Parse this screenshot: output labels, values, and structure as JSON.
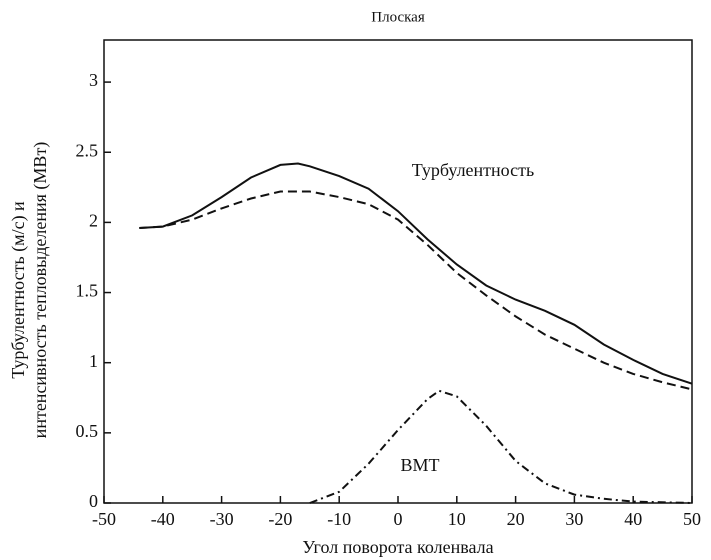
{
  "chart_data": {
    "type": "line",
    "title": "Плоская",
    "xlabel": "Угол поворота коленвала",
    "ylabel": [
      "Турбулентность (м/с) и",
      "интенсивность тепловыделения (МВт)"
    ],
    "annotations": [
      "Турбулентность",
      "ВМТ"
    ],
    "xlim": [
      -50,
      50
    ],
    "xticks": [
      -50,
      -40,
      -30,
      -20,
      -10,
      0,
      10,
      20,
      30,
      40,
      50
    ],
    "ylim": [
      0,
      3.3
    ],
    "yticks": [
      0,
      0.5,
      1,
      1.5,
      2,
      2.5,
      3
    ],
    "series": [
      {
        "color": "#111111",
        "dash": "solid",
        "x": [
          -44,
          -40,
          -35,
          -30,
          -25,
          -20,
          -17,
          -15,
          -10,
          -5,
          0,
          5,
          10,
          15,
          20,
          25,
          30,
          35,
          40,
          45,
          50
        ],
        "values": [
          1.96,
          1.97,
          2.05,
          2.18,
          2.32,
          2.41,
          2.42,
          2.4,
          2.33,
          2.24,
          2.08,
          1.88,
          1.7,
          1.55,
          1.45,
          1.37,
          1.27,
          1.13,
          1.02,
          0.92,
          0.85
        ]
      },
      {
        "color": "#111111",
        "dash": "dashed",
        "x": [
          -44,
          -40,
          -35,
          -30,
          -25,
          -20,
          -15,
          -10,
          -5,
          0,
          5,
          10,
          15,
          20,
          25,
          30,
          35,
          40,
          45,
          50
        ],
        "values": [
          1.96,
          1.97,
          2.02,
          2.1,
          2.17,
          2.22,
          2.22,
          2.18,
          2.13,
          2.02,
          1.84,
          1.64,
          1.48,
          1.33,
          1.2,
          1.1,
          1,
          0.92,
          0.86,
          0.81
        ]
      },
      {
        "color": "#111111",
        "dash": "dashdot",
        "x": [
          -15,
          -10,
          -5,
          0,
          5,
          7,
          10,
          15,
          20,
          25,
          30,
          35,
          40,
          50
        ],
        "values": [
          0,
          0.08,
          0.28,
          0.52,
          0.74,
          0.8,
          0.76,
          0.55,
          0.3,
          0.14,
          0.06,
          0.03,
          0.01,
          0
        ]
      }
    ]
  }
}
